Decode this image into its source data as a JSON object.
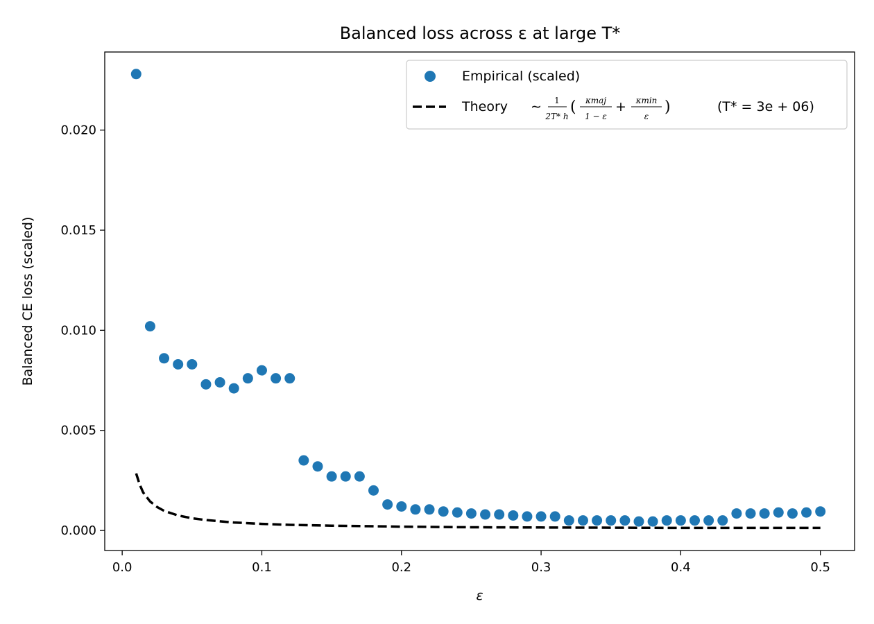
{
  "chart_data": {
    "type": "scatter",
    "title": "Balanced loss across ε at large T*",
    "xlabel": "ε",
    "ylabel": "Balanced CE loss (scaled)",
    "xlim": [
      -0.0125,
      0.5245
    ],
    "ylim": [
      -0.001,
      0.0239
    ],
    "xticks": [
      0.0,
      0.1,
      0.2,
      0.3,
      0.4,
      0.5
    ],
    "xtick_labels": [
      "0.0",
      "0.1",
      "0.2",
      "0.3",
      "0.4",
      "0.5"
    ],
    "yticks": [
      0.0,
      0.005,
      0.01,
      0.015,
      0.02
    ],
    "ytick_labels": [
      "0.000",
      "0.005",
      "0.010",
      "0.015",
      "0.020"
    ],
    "grid": false,
    "legend_position": "top-right",
    "series": [
      {
        "name": "Empirical (scaled)",
        "kind": "scatter",
        "color": "#1f77b4",
        "x": [
          0.01,
          0.02,
          0.03,
          0.04,
          0.05,
          0.06,
          0.07,
          0.08,
          0.09,
          0.1,
          0.11,
          0.12,
          0.13,
          0.14,
          0.15,
          0.16,
          0.17,
          0.18,
          0.19,
          0.2,
          0.21,
          0.22,
          0.23,
          0.24,
          0.25,
          0.26,
          0.27,
          0.28,
          0.29,
          0.3,
          0.31,
          0.32,
          0.33,
          0.34,
          0.35,
          0.36,
          0.37,
          0.38,
          0.39,
          0.4,
          0.41,
          0.42,
          0.43,
          0.44,
          0.45,
          0.46,
          0.47,
          0.48,
          0.49,
          0.5
        ],
        "y": [
          0.0228,
          0.0102,
          0.0086,
          0.0083,
          0.0083,
          0.0073,
          0.0074,
          0.0071,
          0.0076,
          0.008,
          0.0076,
          0.0076,
          0.0035,
          0.0032,
          0.0027,
          0.0027,
          0.0027,
          0.002,
          0.0013,
          0.0012,
          0.00105,
          0.00105,
          0.00095,
          0.0009,
          0.00085,
          0.0008,
          0.0008,
          0.00075,
          0.0007,
          0.0007,
          0.0007,
          0.0005,
          0.0005,
          0.0005,
          0.0005,
          0.0005,
          0.00045,
          0.00045,
          0.0005,
          0.0005,
          0.0005,
          0.0005,
          0.0005,
          0.00085,
          0.00085,
          0.00085,
          0.0009,
          0.00085,
          0.0009,
          0.00095
        ]
      },
      {
        "name": "Theory",
        "kind": "line",
        "style": "dashed",
        "color": "#000000",
        "x": [
          0.01,
          0.0125,
          0.015,
          0.02,
          0.025,
          0.03,
          0.04,
          0.05,
          0.06,
          0.08,
          0.1,
          0.12,
          0.15,
          0.2,
          0.25,
          0.3,
          0.35,
          0.4,
          0.45,
          0.5
        ],
        "y": [
          0.00285,
          0.0023,
          0.0019,
          0.00145,
          0.00117,
          0.00098,
          0.00075,
          0.00061,
          0.00052,
          0.0004,
          0.00033,
          0.00028,
          0.00024,
          0.00019,
          0.00016,
          0.00015,
          0.00014,
          0.00013,
          0.00013,
          0.00013
        ]
      }
    ]
  },
  "legend": {
    "entries": [
      {
        "label": "Empirical (scaled)"
      },
      {
        "label": "Theory",
        "formula_prefix": "∼",
        "formula_coef_num": "1",
        "formula_coef_den": "2T* h",
        "formula_term1_num": "κmaj",
        "formula_term1_den": "1 − ε",
        "formula_plus": "+",
        "formula_term2_num": "κmin",
        "formula_term2_den": "ε",
        "t_star_annotation": "(T* = 3e + 06)"
      }
    ]
  }
}
